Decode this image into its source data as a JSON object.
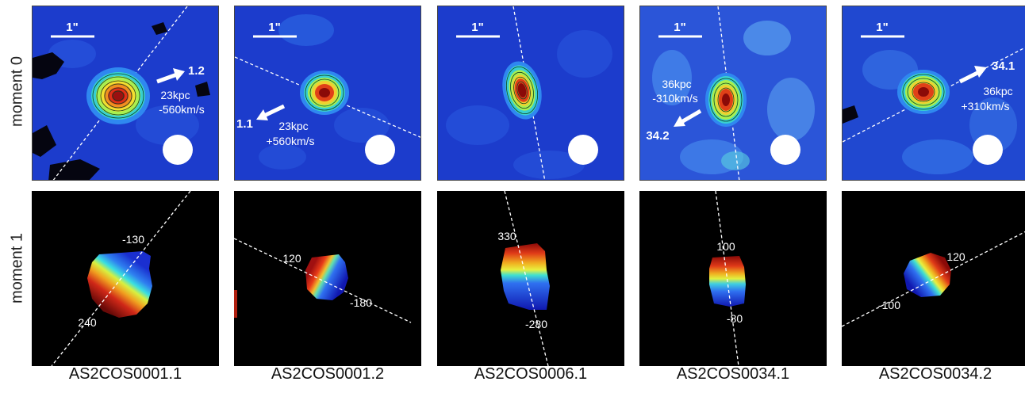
{
  "row_labels": {
    "moment0": "moment 0",
    "moment1": "moment 1"
  },
  "scalebar_label": "1\"",
  "galaxies": [
    {
      "name": "AS2COS0001.1",
      "m0": [
        {
          "text": "1.2",
          "bold": true
        },
        {
          "text": "23kpc"
        },
        {
          "text": "-560km/s"
        }
      ],
      "m1": [
        {
          "text": "-130"
        },
        {
          "text": "240"
        }
      ]
    },
    {
      "name": "AS2COS0001.2",
      "m0": [
        {
          "text": "1.1",
          "bold": true
        },
        {
          "text": "23kpc"
        },
        {
          "text": "+560km/s"
        }
      ],
      "m1": [
        {
          "text": "120"
        },
        {
          "text": "-180"
        }
      ]
    },
    {
      "name": "AS2COS0006.1",
      "m0": [],
      "m1": [
        {
          "text": "330"
        },
        {
          "text": "-280"
        }
      ]
    },
    {
      "name": "AS2COS0034.1",
      "m0": [
        {
          "text": "36kpc"
        },
        {
          "text": "-310km/s"
        },
        {
          "text": "34.2",
          "bold": true
        }
      ],
      "m1": [
        {
          "text": "100"
        },
        {
          "text": "-80"
        }
      ]
    },
    {
      "name": "AS2COS0034.2",
      "m0": [
        {
          "text": "34.1",
          "bold": true
        },
        {
          "text": "36kpc"
        },
        {
          "text": "+310km/s"
        }
      ],
      "m1": [
        {
          "text": "120"
        },
        {
          "text": "-100"
        }
      ]
    }
  ]
}
